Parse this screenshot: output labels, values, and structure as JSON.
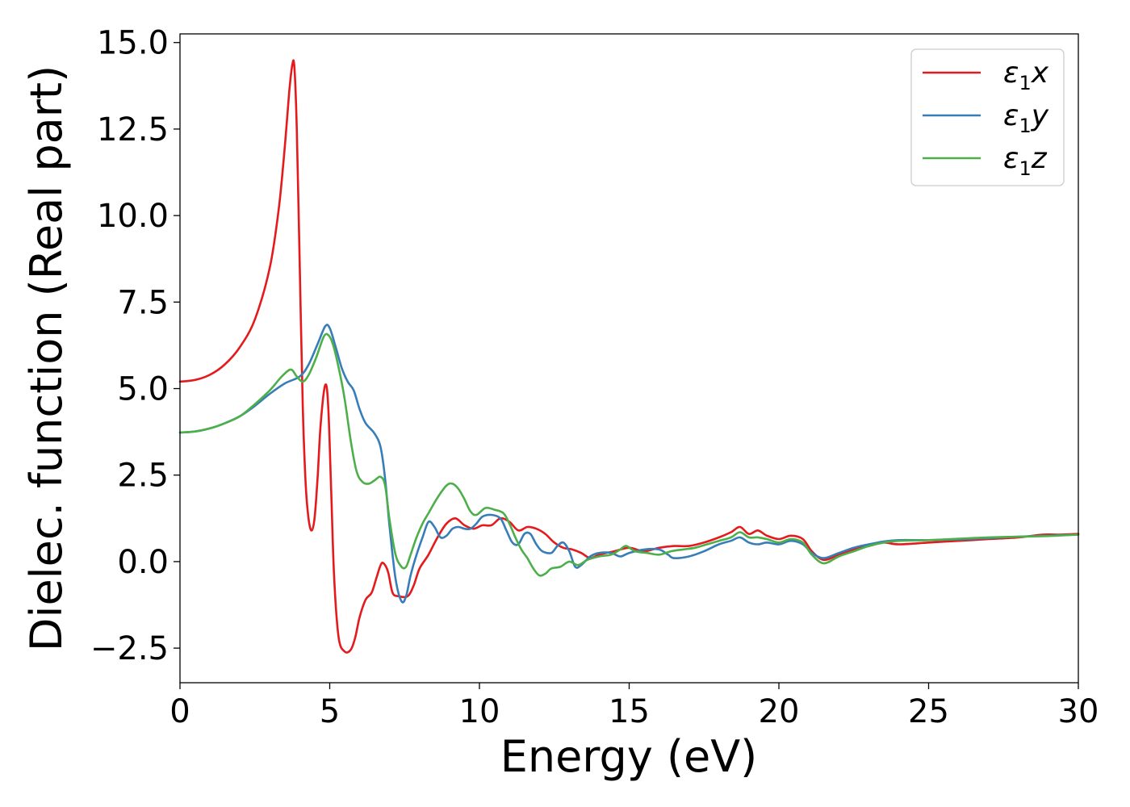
{
  "chart_data": {
    "type": "line",
    "xlabel": "Energy (eV)",
    "ylabel": "Dielec. function (Real part)",
    "xlim": [
      0,
      30
    ],
    "ylim": [
      -3.5,
      15.25
    ],
    "xticks": [
      "0",
      "5",
      "10",
      "15",
      "20",
      "25",
      "30"
    ],
    "yticks": [
      "−2.5",
      "0.0",
      "2.5",
      "5.0",
      "7.5",
      "10.0",
      "12.5",
      "15.0"
    ],
    "xtick_values": [
      0,
      5,
      10,
      15,
      20,
      25,
      30
    ],
    "ytick_values": [
      -2.5,
      0,
      2.5,
      5,
      7.5,
      10,
      12.5,
      15
    ],
    "grid": false,
    "legend_position": "top-right",
    "series": [
      {
        "name": "ε₁x",
        "symbol": "ε",
        "subscript": "1",
        "component": "x",
        "color": "#e41a1c",
        "points": [
          [
            0,
            5.2
          ],
          [
            0.5,
            5.25
          ],
          [
            1,
            5.4
          ],
          [
            1.5,
            5.7
          ],
          [
            2,
            6.2
          ],
          [
            2.5,
            7.0
          ],
          [
            3,
            8.5
          ],
          [
            3.3,
            10.2
          ],
          [
            3.5,
            12.0
          ],
          [
            3.65,
            13.6
          ],
          [
            3.75,
            14.35
          ],
          [
            3.82,
            14.3
          ],
          [
            3.9,
            12.5
          ],
          [
            4.0,
            8.5
          ],
          [
            4.1,
            4.5
          ],
          [
            4.2,
            2.2
          ],
          [
            4.3,
            1.2
          ],
          [
            4.4,
            0.9
          ],
          [
            4.5,
            1.3
          ],
          [
            4.6,
            2.5
          ],
          [
            4.7,
            4.0
          ],
          [
            4.85,
            5.1
          ],
          [
            4.95,
            4.5
          ],
          [
            5.05,
            2.0
          ],
          [
            5.15,
            -0.5
          ],
          [
            5.3,
            -2.2
          ],
          [
            5.5,
            -2.6
          ],
          [
            5.7,
            -2.55
          ],
          [
            5.85,
            -2.2
          ],
          [
            6.0,
            -1.6
          ],
          [
            6.2,
            -1.1
          ],
          [
            6.4,
            -0.9
          ],
          [
            6.55,
            -0.5
          ],
          [
            6.7,
            -0.1
          ],
          [
            6.8,
            -0.05
          ],
          [
            6.95,
            -0.3
          ],
          [
            7.1,
            -0.9
          ],
          [
            7.3,
            -1.0
          ],
          [
            7.6,
            -1.0
          ],
          [
            7.8,
            -0.7
          ],
          [
            8.0,
            -0.2
          ],
          [
            8.3,
            0.2
          ],
          [
            8.6,
            0.7
          ],
          [
            8.9,
            1.1
          ],
          [
            9.2,
            1.25
          ],
          [
            9.5,
            1.05
          ],
          [
            9.8,
            0.95
          ],
          [
            10.1,
            1.05
          ],
          [
            10.4,
            1.05
          ],
          [
            10.7,
            1.25
          ],
          [
            11.0,
            1.15
          ],
          [
            11.3,
            0.9
          ],
          [
            11.6,
            1.0
          ],
          [
            11.9,
            0.95
          ],
          [
            12.2,
            0.8
          ],
          [
            12.5,
            0.55
          ],
          [
            12.8,
            0.4
          ],
          [
            13.1,
            0.35
          ],
          [
            13.4,
            0.25
          ],
          [
            13.7,
            0.1
          ],
          [
            14.0,
            0.2
          ],
          [
            14.5,
            0.3
          ],
          [
            15.0,
            0.4
          ],
          [
            15.5,
            0.3
          ],
          [
            16.0,
            0.4
          ],
          [
            16.5,
            0.45
          ],
          [
            17.0,
            0.45
          ],
          [
            17.5,
            0.55
          ],
          [
            18.0,
            0.7
          ],
          [
            18.4,
            0.85
          ],
          [
            18.7,
            1.0
          ],
          [
            19.0,
            0.8
          ],
          [
            19.3,
            0.9
          ],
          [
            19.6,
            0.75
          ],
          [
            20.0,
            0.65
          ],
          [
            20.4,
            0.75
          ],
          [
            20.8,
            0.65
          ],
          [
            21.1,
            0.3
          ],
          [
            21.5,
            0.05
          ],
          [
            22.0,
            0.2
          ],
          [
            22.5,
            0.35
          ],
          [
            23.0,
            0.45
          ],
          [
            23.5,
            0.55
          ],
          [
            24.0,
            0.5
          ],
          [
            25.0,
            0.55
          ],
          [
            26.0,
            0.6
          ],
          [
            27.0,
            0.65
          ],
          [
            28.0,
            0.7
          ],
          [
            28.8,
            0.78
          ],
          [
            29.4,
            0.78
          ],
          [
            30.0,
            0.8
          ]
        ]
      },
      {
        "name": "ε₁y",
        "symbol": "ε",
        "subscript": "1",
        "component": "y",
        "color": "#377eb8",
        "points": [
          [
            0,
            3.73
          ],
          [
            0.5,
            3.76
          ],
          [
            1,
            3.85
          ],
          [
            1.5,
            4.0
          ],
          [
            2,
            4.2
          ],
          [
            2.5,
            4.5
          ],
          [
            3,
            4.85
          ],
          [
            3.5,
            5.15
          ],
          [
            4.0,
            5.35
          ],
          [
            4.3,
            5.7
          ],
          [
            4.6,
            6.3
          ],
          [
            4.85,
            6.8
          ],
          [
            5.0,
            6.75
          ],
          [
            5.2,
            6.2
          ],
          [
            5.4,
            5.6
          ],
          [
            5.6,
            5.2
          ],
          [
            5.8,
            4.95
          ],
          [
            6.0,
            4.4
          ],
          [
            6.2,
            4.0
          ],
          [
            6.5,
            3.7
          ],
          [
            6.7,
            3.3
          ],
          [
            6.85,
            2.4
          ],
          [
            7.0,
            1.0
          ],
          [
            7.2,
            -0.5
          ],
          [
            7.4,
            -1.15
          ],
          [
            7.55,
            -1.0
          ],
          [
            7.7,
            -0.4
          ],
          [
            7.9,
            0.2
          ],
          [
            8.1,
            0.7
          ],
          [
            8.3,
            1.15
          ],
          [
            8.5,
            1.0
          ],
          [
            8.7,
            0.7
          ],
          [
            8.9,
            0.75
          ],
          [
            9.1,
            0.95
          ],
          [
            9.3,
            1.0
          ],
          [
            9.5,
            0.95
          ],
          [
            9.7,
            0.95
          ],
          [
            9.9,
            1.1
          ],
          [
            10.1,
            1.3
          ],
          [
            10.4,
            1.35
          ],
          [
            10.7,
            1.25
          ],
          [
            10.9,
            0.9
          ],
          [
            11.1,
            0.55
          ],
          [
            11.3,
            0.5
          ],
          [
            11.5,
            0.8
          ],
          [
            11.7,
            0.8
          ],
          [
            11.9,
            0.5
          ],
          [
            12.1,
            0.3
          ],
          [
            12.4,
            0.25
          ],
          [
            12.6,
            0.45
          ],
          [
            12.8,
            0.55
          ],
          [
            13.0,
            0.3
          ],
          [
            13.2,
            -0.15
          ],
          [
            13.4,
            -0.1
          ],
          [
            13.7,
            0.15
          ],
          [
            14.0,
            0.25
          ],
          [
            14.4,
            0.25
          ],
          [
            14.7,
            0.15
          ],
          [
            15.0,
            0.25
          ],
          [
            15.5,
            0.35
          ],
          [
            16.0,
            0.35
          ],
          [
            16.3,
            0.2
          ],
          [
            16.5,
            0.1
          ],
          [
            17.0,
            0.15
          ],
          [
            17.5,
            0.3
          ],
          [
            18.0,
            0.5
          ],
          [
            18.4,
            0.6
          ],
          [
            18.7,
            0.7
          ],
          [
            19.0,
            0.55
          ],
          [
            19.3,
            0.5
          ],
          [
            19.6,
            0.55
          ],
          [
            20.0,
            0.5
          ],
          [
            20.4,
            0.6
          ],
          [
            20.8,
            0.5
          ],
          [
            21.1,
            0.25
          ],
          [
            21.5,
            0.1
          ],
          [
            22.0,
            0.25
          ],
          [
            22.5,
            0.4
          ],
          [
            23.0,
            0.5
          ],
          [
            23.5,
            0.58
          ],
          [
            24.0,
            0.62
          ],
          [
            25.0,
            0.62
          ],
          [
            26.0,
            0.64
          ],
          [
            27.0,
            0.68
          ],
          [
            28.0,
            0.72
          ],
          [
            29.0,
            0.75
          ],
          [
            30.0,
            0.78
          ]
        ]
      },
      {
        "name": "ε₁z",
        "symbol": "ε",
        "subscript": "1",
        "component": "z",
        "color": "#4daf4a",
        "points": [
          [
            0,
            3.73
          ],
          [
            0.5,
            3.76
          ],
          [
            1,
            3.85
          ],
          [
            1.5,
            4.0
          ],
          [
            2,
            4.2
          ],
          [
            2.5,
            4.55
          ],
          [
            3.0,
            4.95
          ],
          [
            3.4,
            5.35
          ],
          [
            3.7,
            5.55
          ],
          [
            3.9,
            5.35
          ],
          [
            4.1,
            5.2
          ],
          [
            4.3,
            5.4
          ],
          [
            4.55,
            5.9
          ],
          [
            4.8,
            6.5
          ],
          [
            4.95,
            6.55
          ],
          [
            5.1,
            6.3
          ],
          [
            5.3,
            5.6
          ],
          [
            5.5,
            4.7
          ],
          [
            5.7,
            3.5
          ],
          [
            5.9,
            2.6
          ],
          [
            6.1,
            2.3
          ],
          [
            6.3,
            2.25
          ],
          [
            6.5,
            2.35
          ],
          [
            6.7,
            2.45
          ],
          [
            6.85,
            2.2
          ],
          [
            7.0,
            1.2
          ],
          [
            7.2,
            0.2
          ],
          [
            7.4,
            -0.15
          ],
          [
            7.55,
            -0.15
          ],
          [
            7.7,
            0.2
          ],
          [
            7.9,
            0.7
          ],
          [
            8.1,
            1.1
          ],
          [
            8.3,
            1.4
          ],
          [
            8.6,
            1.85
          ],
          [
            8.9,
            2.2
          ],
          [
            9.1,
            2.25
          ],
          [
            9.3,
            2.1
          ],
          [
            9.5,
            1.8
          ],
          [
            9.7,
            1.45
          ],
          [
            9.9,
            1.35
          ],
          [
            10.2,
            1.55
          ],
          [
            10.5,
            1.5
          ],
          [
            10.8,
            1.4
          ],
          [
            11.0,
            1.1
          ],
          [
            11.2,
            0.7
          ],
          [
            11.4,
            0.35
          ],
          [
            11.6,
            0.1
          ],
          [
            11.8,
            -0.2
          ],
          [
            12.0,
            -0.4
          ],
          [
            12.2,
            -0.35
          ],
          [
            12.4,
            -0.2
          ],
          [
            12.7,
            -0.15
          ],
          [
            13.0,
            0.0
          ],
          [
            13.3,
            -0.1
          ],
          [
            13.6,
            0.05
          ],
          [
            14.0,
            0.15
          ],
          [
            14.4,
            0.2
          ],
          [
            14.7,
            0.35
          ],
          [
            14.9,
            0.45
          ],
          [
            15.2,
            0.3
          ],
          [
            15.6,
            0.25
          ],
          [
            16.0,
            0.2
          ],
          [
            16.4,
            0.3
          ],
          [
            16.8,
            0.35
          ],
          [
            17.2,
            0.4
          ],
          [
            17.6,
            0.5
          ],
          [
            18.0,
            0.6
          ],
          [
            18.4,
            0.7
          ],
          [
            18.7,
            0.85
          ],
          [
            19.0,
            0.7
          ],
          [
            19.3,
            0.7
          ],
          [
            19.6,
            0.65
          ],
          [
            20.0,
            0.55
          ],
          [
            20.4,
            0.65
          ],
          [
            20.8,
            0.55
          ],
          [
            21.1,
            0.2
          ],
          [
            21.5,
            -0.05
          ],
          [
            22.0,
            0.15
          ],
          [
            22.5,
            0.3
          ],
          [
            23.0,
            0.45
          ],
          [
            23.5,
            0.55
          ],
          [
            24.0,
            0.6
          ],
          [
            25.0,
            0.62
          ],
          [
            26.0,
            0.66
          ],
          [
            27.0,
            0.7
          ],
          [
            28.0,
            0.72
          ],
          [
            29.0,
            0.74
          ],
          [
            30.0,
            0.78
          ]
        ]
      }
    ]
  }
}
